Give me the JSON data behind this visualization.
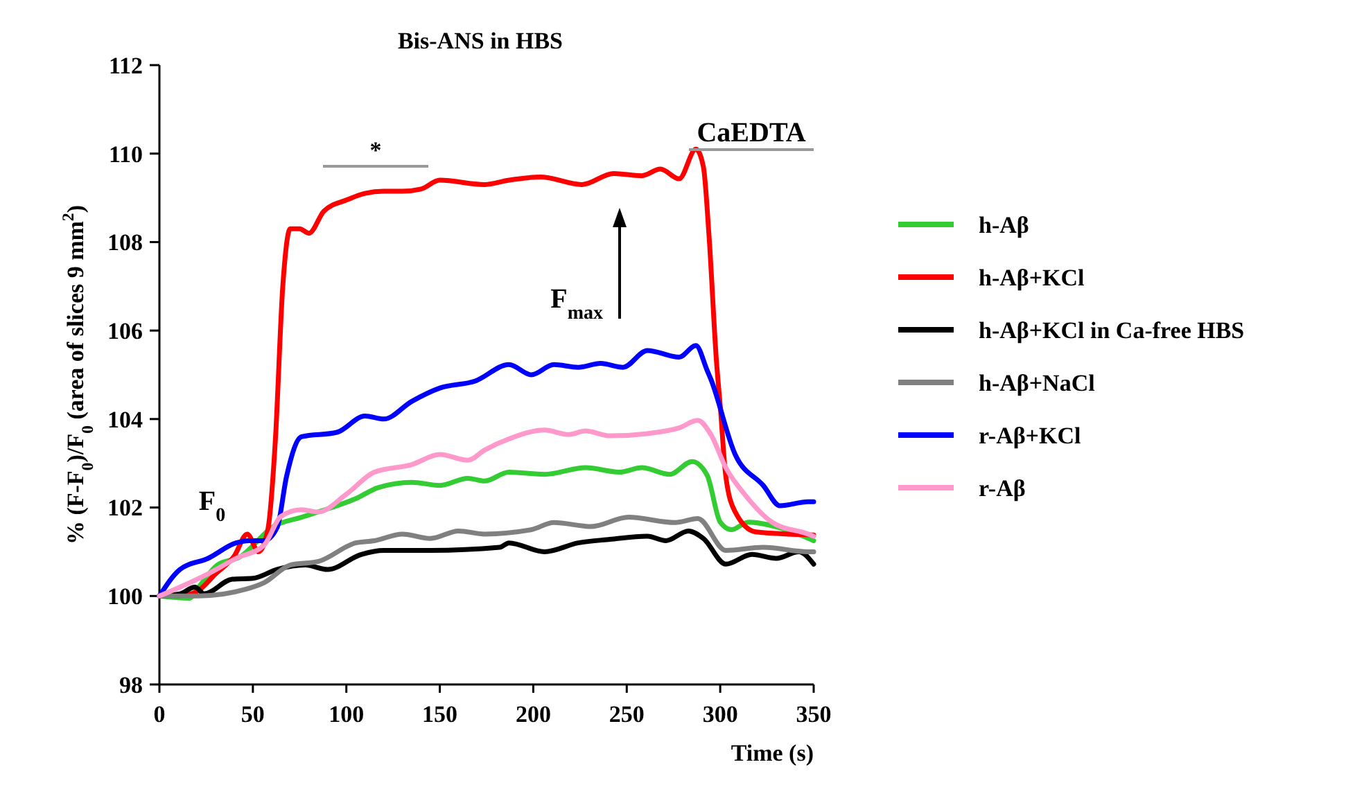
{
  "chart_data": {
    "type": "line",
    "title": "Bis-ANS in HBS",
    "xlabel": "Time (s)",
    "ylabel": "% (F-F$_{0}$)/F$_{0}$ (area of slices 9 mm$^{2}$)",
    "xlim": [
      0,
      350
    ],
    "xticks": [
      0,
      50,
      100,
      150,
      200,
      250,
      300,
      350
    ],
    "ylim": [
      98,
      112
    ],
    "yticks": [
      98,
      100,
      102,
      104,
      106,
      108,
      110,
      112
    ],
    "grid": false,
    "legend": "right",
    "marker": "none",
    "line_style": "solid",
    "annotations": [
      "F$_{0}$",
      "*",
      "F$_{max}$",
      "CaEDTA"
    ],
    "series": [
      {
        "name": "h-Aβ",
        "color": "#33cc33",
        "x": [
          0,
          16,
          21,
          31,
          43,
          61,
          76,
          90,
          105,
          117,
          135,
          150,
          165,
          174,
          187,
          206,
          228,
          246,
          258,
          273,
          285,
          293,
          300,
          306,
          315,
          335,
          350
        ],
        "values": [
          100,
          99.95,
          100.2,
          100.7,
          100.88,
          101.57,
          101.78,
          101.97,
          102.2,
          102.45,
          102.57,
          102.5,
          102.66,
          102.6,
          102.8,
          102.75,
          102.9,
          102.8,
          102.9,
          102.75,
          103.04,
          102.73,
          101.67,
          101.5,
          101.67,
          101.5,
          101.25
        ]
      },
      {
        "name": "h-Aβ+KCl",
        "color": "#ff0000",
        "x": [
          0,
          10,
          20,
          30,
          40,
          47,
          53,
          58,
          62,
          66,
          70,
          75,
          80,
          88,
          100,
          110,
          120,
          130,
          140,
          150,
          174,
          187,
          204,
          226,
          243,
          258,
          268,
          278,
          287,
          291,
          294,
          298,
          300,
          303,
          308,
          319,
          350
        ],
        "values": [
          100,
          100,
          100.1,
          100.5,
          100.9,
          101.4,
          101,
          101.5,
          103.5,
          107,
          108.3,
          108.3,
          108.2,
          108.7,
          108.95,
          109.1,
          109.15,
          109.15,
          109.2,
          109.4,
          109.3,
          109.4,
          109.47,
          109.3,
          109.55,
          109.5,
          109.65,
          109.43,
          110.1,
          109.7,
          108.15,
          105.3,
          104.3,
          102.7,
          101.9,
          101.45,
          101.38
        ]
      },
      {
        "name": "h-Aβ+KCl in Ca-free HBS",
        "color": "#000000",
        "x": [
          0,
          11,
          19,
          24,
          39,
          50,
          63,
          78,
          90,
          108,
          120,
          145,
          182,
          187,
          206,
          224,
          241,
          261,
          271,
          283,
          291,
          303,
          317,
          330,
          342,
          350
        ],
        "values": [
          100,
          100.05,
          100.2,
          100.05,
          100.38,
          100.4,
          100.6,
          100.7,
          100.6,
          100.94,
          101.03,
          101.03,
          101.1,
          101.2,
          101,
          101.2,
          101.28,
          101.35,
          101.25,
          101.47,
          101.3,
          100.72,
          100.94,
          100.85,
          101,
          100.72
        ]
      },
      {
        "name": "h-Aβ+NaCl",
        "color": "#808080",
        "x": [
          0,
          21,
          46,
          56,
          70,
          85,
          105,
          115,
          130,
          145,
          160,
          174,
          199,
          211,
          231,
          251,
          276,
          288,
          303,
          323,
          347,
          350
        ],
        "values": [
          100,
          100,
          100.15,
          100.3,
          100.7,
          100.78,
          101.2,
          101.25,
          101.4,
          101.3,
          101.47,
          101.4,
          101.5,
          101.66,
          101.57,
          101.78,
          101.66,
          101.75,
          101.03,
          101.1,
          101,
          101
        ]
      },
      {
        "name": "r-Aβ+KCl",
        "color": "#0000ff",
        "x": [
          0,
          11,
          26,
          41,
          48,
          56,
          63,
          68,
          76,
          95,
          110,
          120,
          135,
          150,
          169,
          187,
          199,
          211,
          224,
          236,
          248,
          261,
          278,
          287,
          293,
          295,
          308,
          323,
          332,
          347,
          350
        ],
        "values": [
          100,
          100.6,
          100.85,
          101.2,
          101.25,
          101.25,
          101.55,
          102.7,
          103.6,
          103.7,
          104.07,
          104,
          104.4,
          104.7,
          104.86,
          105.23,
          105,
          105.23,
          105.17,
          105.26,
          105.17,
          105.55,
          105.4,
          105.66,
          105.1,
          104.9,
          103.2,
          102.5,
          102.04,
          102.13,
          102.13
        ]
      },
      {
        "name": "r-Aβ",
        "color": "#ff99cc",
        "x": [
          0,
          11,
          26,
          41,
          56,
          65,
          76,
          85,
          100,
          115,
          135,
          150,
          165,
          174,
          187,
          206,
          219,
          228,
          241,
          261,
          278,
          288,
          295,
          303,
          313,
          328,
          347,
          350
        ],
        "values": [
          100,
          100.2,
          100.5,
          100.85,
          101.15,
          101.8,
          101.95,
          101.9,
          102.3,
          102.8,
          102.97,
          103.2,
          103.07,
          103.3,
          103.55,
          103.75,
          103.65,
          103.73,
          103.62,
          103.67,
          103.8,
          103.97,
          103.65,
          102.9,
          102.3,
          101.66,
          101.4,
          101.35
        ]
      }
    ]
  }
}
